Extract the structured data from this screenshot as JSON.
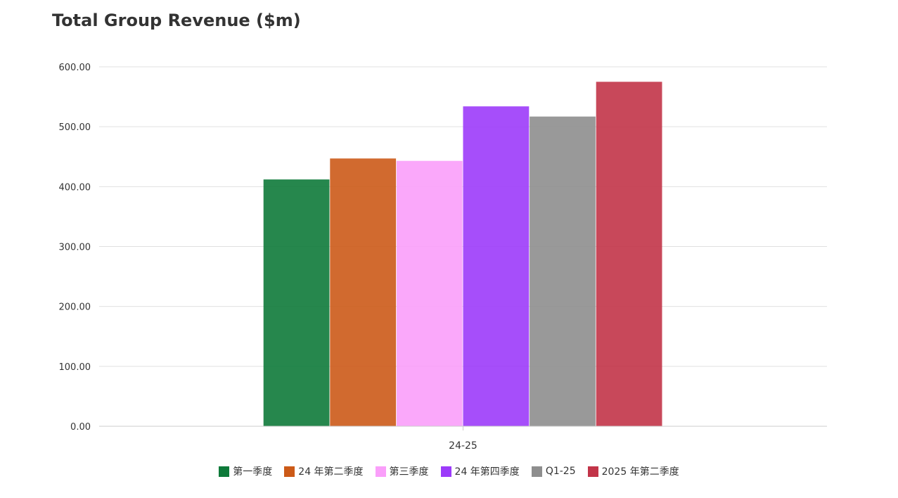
{
  "colors": {
    "background": "#ffffff",
    "text": "#333333",
    "gridline": "#e0e0e0",
    "axis": "#cccccc"
  },
  "chart_data": {
    "type": "bar",
    "title": "Total Group Revenue ($m)",
    "xlabel": "",
    "ylabel": "",
    "categories": [
      "24-25"
    ],
    "ylim": [
      0,
      600
    ],
    "yticks": [
      "0.00",
      "100.00",
      "200.00",
      "300.00",
      "400.00",
      "500.00",
      "600.00"
    ],
    "grid": true,
    "legend_position": "bottom-center",
    "series": [
      {
        "name": "第一季度",
        "values": [
          412
        ],
        "color": "#0e7a3a"
      },
      {
        "name": "24 年第二季度",
        "values": [
          447
        ],
        "color": "#cc5a18"
      },
      {
        "name": "第三季度",
        "values": [
          443
        ],
        "color": "#fa9ffa"
      },
      {
        "name": "24 年第四季度",
        "values": [
          534
        ],
        "color": "#9c3bfa"
      },
      {
        "name": "Q1-25",
        "values": [
          517
        ],
        "color": "#8e8e8e"
      },
      {
        "name": "2025 年第二季度",
        "values": [
          575
        ],
        "color": "#c23448"
      }
    ]
  }
}
